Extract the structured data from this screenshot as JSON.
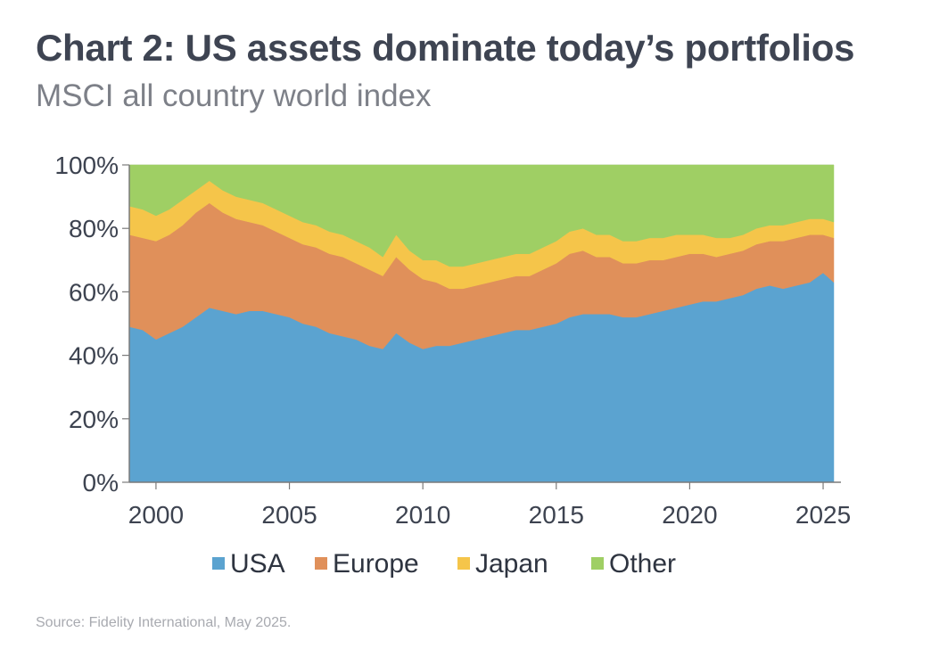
{
  "title": "Chart 2: US assets dominate today’s portfolios",
  "subtitle": "MSCI all country world index",
  "source": "Source: Fidelity International, May 2025.",
  "colors": {
    "USA": "#5ba3d0",
    "Europe": "#e0905a",
    "Japan": "#f5c54a",
    "Other": "#9fcf64",
    "axis": "#7a7a7a",
    "grid": "#d9d9d9"
  },
  "chart_data": {
    "type": "area",
    "stacked": true,
    "title": "Chart 2: US assets dominate today’s portfolios",
    "subtitle": "MSCI all country world index",
    "xlabel": "",
    "ylabel": "",
    "xlim": [
      1999.0,
      2025.4
    ],
    "ylim": [
      0,
      100
    ],
    "y_unit": "%",
    "grid": true,
    "legend_position": "bottom",
    "x_ticks": [
      2000,
      2005,
      2010,
      2015,
      2020,
      2025
    ],
    "y_ticks": [
      "0%",
      "20%",
      "40%",
      "60%",
      "80%",
      "100%"
    ],
    "x": [
      1999.0,
      1999.5,
      2000.0,
      2000.5,
      2001.0,
      2001.5,
      2002.0,
      2002.5,
      2003.0,
      2003.5,
      2004.0,
      2004.5,
      2005.0,
      2005.5,
      2006.0,
      2006.5,
      2007.0,
      2007.5,
      2008.0,
      2008.5,
      2009.0,
      2009.5,
      2010.0,
      2010.5,
      2011.0,
      2011.5,
      2012.0,
      2012.5,
      2013.0,
      2013.5,
      2014.0,
      2014.5,
      2015.0,
      2015.5,
      2016.0,
      2016.5,
      2017.0,
      2017.5,
      2018.0,
      2018.5,
      2019.0,
      2019.5,
      2020.0,
      2020.5,
      2021.0,
      2021.5,
      2022.0,
      2022.5,
      2023.0,
      2023.5,
      2024.0,
      2024.5,
      2025.0,
      2025.4
    ],
    "series": [
      {
        "name": "USA",
        "values": [
          49,
          48,
          45,
          47,
          49,
          52,
          55,
          54,
          53,
          54,
          54,
          53,
          52,
          50,
          49,
          47,
          46,
          45,
          43,
          42,
          47,
          44,
          42,
          43,
          43,
          44,
          45,
          46,
          47,
          48,
          48,
          49,
          50,
          52,
          53,
          53,
          53,
          52,
          52,
          53,
          54,
          55,
          56,
          57,
          57,
          58,
          59,
          61,
          62,
          61,
          62,
          63,
          66,
          63
        ]
      },
      {
        "name": "Europe",
        "values": [
          29,
          29,
          31,
          31,
          32,
          33,
          33,
          31,
          30,
          28,
          27,
          26,
          25,
          25,
          25,
          25,
          25,
          24,
          24,
          23,
          24,
          23,
          22,
          20,
          18,
          17,
          17,
          17,
          17,
          17,
          17,
          18,
          19,
          20,
          20,
          18,
          18,
          17,
          17,
          17,
          16,
          16,
          16,
          15,
          14,
          14,
          14,
          14,
          14,
          15,
          15,
          15,
          12,
          14
        ]
      },
      {
        "name": "Japan",
        "values": [
          9,
          9,
          8,
          8,
          8,
          7,
          7,
          7,
          7,
          7,
          7,
          7,
          7,
          7,
          7,
          7,
          7,
          7,
          7,
          6,
          7,
          6,
          6,
          7,
          7,
          7,
          7,
          7,
          7,
          7,
          7,
          7,
          7,
          7,
          7,
          7,
          7,
          7,
          7,
          7,
          7,
          7,
          6,
          6,
          6,
          5,
          5,
          5,
          5,
          5,
          5,
          5,
          5,
          5
        ]
      },
      {
        "name": "Other",
        "values": [
          13,
          14,
          16,
          14,
          11,
          8,
          5,
          8,
          10,
          11,
          12,
          14,
          16,
          18,
          19,
          21,
          22,
          24,
          26,
          29,
          22,
          27,
          30,
          30,
          32,
          32,
          31,
          30,
          29,
          28,
          28,
          26,
          24,
          21,
          20,
          22,
          22,
          24,
          24,
          23,
          23,
          22,
          22,
          22,
          23,
          23,
          22,
          20,
          19,
          19,
          18,
          17,
          17,
          18
        ]
      }
    ]
  }
}
